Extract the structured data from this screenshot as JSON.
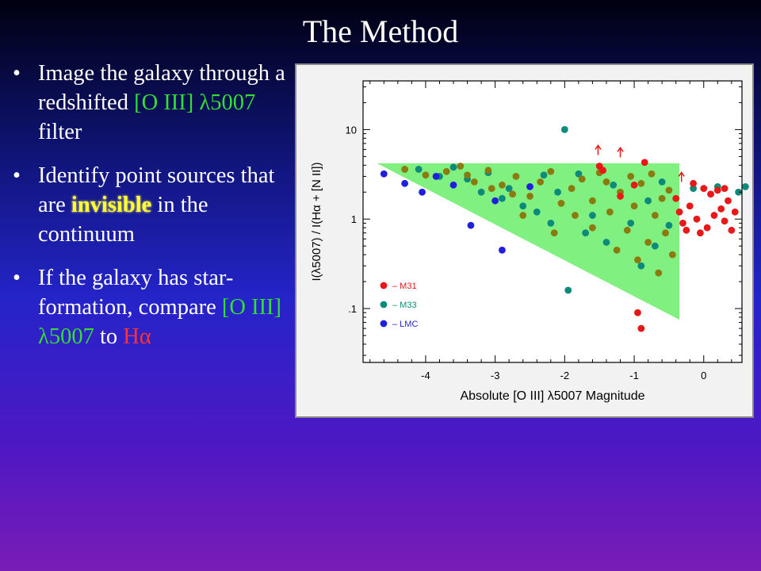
{
  "slide": {
    "title": "The Method",
    "bullets": [
      {
        "parts": [
          {
            "text": "Image the galaxy through a redshifted ",
            "style": "plain"
          },
          {
            "text": "[O III] λ5007",
            "style": "green"
          },
          {
            "text": " filter",
            "style": "plain"
          }
        ]
      },
      {
        "parts": [
          {
            "text": "Identify point sources that are ",
            "style": "plain"
          },
          {
            "text": "invisible",
            "style": "highlight"
          },
          {
            "text": " in the continuum",
            "style": "plain"
          }
        ]
      },
      {
        "parts": [
          {
            "text": "If the galaxy has star-formation, compare ",
            "style": "plain"
          },
          {
            "text": "[O III] λ5007",
            "style": "green"
          },
          {
            "text": " to ",
            "style": "plain"
          },
          {
            "text": "Hα",
            "style": "red"
          }
        ]
      }
    ]
  },
  "colors": {
    "green_text": "#33dd33",
    "red_text": "#ff3333",
    "highlight_text": "#ffff33",
    "region_fill": "#80f080",
    "m31": "#e81818",
    "m33": "#0e8a7a",
    "lmc": "#1f1fdd",
    "overlap": "#8a7a10"
  },
  "chart_data": {
    "type": "scatter",
    "xlabel": "Absolute [O III] λ5007 Magnitude",
    "ylabel": "I(λ5007) / I(Hα + [N II])",
    "xlim": [
      -4.9,
      0.55
    ],
    "ylim": [
      0.025,
      35
    ],
    "y_scale": "log",
    "x_ticks": [
      -4,
      -3,
      -2,
      -1,
      0
    ],
    "x_tick_labels": [
      "-4",
      "-3",
      "-2",
      "-1",
      "0"
    ],
    "y_ticks": [
      0.1,
      1,
      10
    ],
    "y_tick_labels": [
      ".1",
      "1",
      "10"
    ],
    "legend_position": "lower-left",
    "shaded_region": [
      [
        -4.7,
        4.2
      ],
      [
        -0.35,
        4.2
      ],
      [
        -0.35,
        0.075
      ]
    ],
    "series": [
      {
        "name": "M31",
        "color": "#e81818",
        "points": [
          [
            -0.35,
            1.2
          ],
          [
            -0.3,
            0.9
          ],
          [
            -0.25,
            0.75
          ],
          [
            -0.2,
            1.4
          ],
          [
            -0.1,
            1.0
          ],
          [
            -0.05,
            0.7
          ],
          [
            0.05,
            0.8
          ],
          [
            0.1,
            1.9
          ],
          [
            0.15,
            1.1
          ],
          [
            0.2,
            2.1
          ],
          [
            0.25,
            1.3
          ],
          [
            0.3,
            0.95
          ],
          [
            0.35,
            1.6
          ],
          [
            0.4,
            0.75
          ],
          [
            0.45,
            1.2
          ],
          [
            -0.4,
            1.7
          ],
          [
            -0.15,
            2.5
          ],
          [
            0.0,
            2.2
          ],
          [
            0.3,
            2.2
          ],
          [
            -0.95,
            0.09
          ],
          [
            -0.9,
            0.06
          ],
          [
            -1.0,
            2.4
          ],
          [
            -1.2,
            1.8
          ],
          [
            -1.5,
            3.9
          ],
          [
            -0.85,
            4.3
          ],
          [
            -1.45,
            3.5
          ]
        ]
      },
      {
        "name": "M33",
        "color": "#0e8a7a",
        "points": [
          [
            -2.0,
            10.0
          ],
          [
            -1.95,
            0.16
          ],
          [
            0.2,
            2.3
          ],
          [
            0.6,
            2.3
          ],
          [
            -0.15,
            2.2
          ],
          [
            0.5,
            2.0
          ],
          [
            -3.8,
            3.0
          ],
          [
            -3.4,
            2.8
          ],
          [
            -3.1,
            3.3
          ],
          [
            -2.8,
            2.2
          ],
          [
            -2.6,
            1.4
          ],
          [
            -2.3,
            3.1
          ],
          [
            -2.1,
            2.0
          ],
          [
            -1.8,
            3.2
          ],
          [
            -1.6,
            1.1
          ],
          [
            -1.3,
            2.4
          ],
          [
            -1.05,
            0.9
          ],
          [
            -0.8,
            1.6
          ],
          [
            -0.6,
            2.6
          ],
          [
            -0.5,
            0.85
          ],
          [
            -3.6,
            3.8
          ],
          [
            -2.9,
            1.7
          ],
          [
            -2.2,
            0.9
          ],
          [
            -1.4,
            0.55
          ],
          [
            -0.9,
            0.3
          ],
          [
            -0.7,
            0.5
          ],
          [
            -1.7,
            0.7
          ],
          [
            -2.4,
            1.2
          ],
          [
            -3.2,
            2.0
          ],
          [
            -4.1,
            3.6
          ]
        ]
      },
      {
        "name": "LMC",
        "color": "#1f1fdd",
        "points": [
          [
            -4.6,
            3.2
          ],
          [
            -4.3,
            2.5
          ],
          [
            -4.05,
            2.0
          ],
          [
            -3.85,
            3.0
          ],
          [
            -3.35,
            0.85
          ],
          [
            -2.9,
            0.45
          ],
          [
            -3.6,
            2.4
          ],
          [
            -2.5,
            2.3
          ],
          [
            -3.0,
            1.6
          ]
        ]
      },
      {
        "name": "",
        "color": "#8a7a10",
        "points": [
          [
            -4.3,
            3.6
          ],
          [
            -4.0,
            3.1
          ],
          [
            -3.7,
            3.4
          ],
          [
            -3.5,
            3.9
          ],
          [
            -3.3,
            2.6
          ],
          [
            -3.1,
            3.5
          ],
          [
            -2.9,
            2.4
          ],
          [
            -2.7,
            3.0
          ],
          [
            -2.5,
            1.8
          ],
          [
            -2.35,
            2.6
          ],
          [
            -2.2,
            3.4
          ],
          [
            -2.05,
            1.5
          ],
          [
            -1.9,
            2.2
          ],
          [
            -1.75,
            2.8
          ],
          [
            -1.6,
            1.6
          ],
          [
            -1.5,
            3.3
          ],
          [
            -1.35,
            1.2
          ],
          [
            -1.2,
            2.0
          ],
          [
            -1.1,
            0.75
          ],
          [
            -1.0,
            1.4
          ],
          [
            -0.9,
            2.5
          ],
          [
            -0.8,
            0.55
          ],
          [
            -0.7,
            1.1
          ],
          [
            -0.6,
            1.7
          ],
          [
            -0.5,
            2.1
          ],
          [
            -0.45,
            0.4
          ],
          [
            -1.25,
            0.45
          ],
          [
            -1.6,
            0.8
          ],
          [
            -1.85,
            1.1
          ],
          [
            -2.15,
            0.7
          ],
          [
            -2.6,
            1.1
          ],
          [
            -2.75,
            1.9
          ],
          [
            -3.05,
            2.2
          ],
          [
            -3.4,
            3.1
          ],
          [
            -0.65,
            0.25
          ],
          [
            -0.55,
            0.7
          ],
          [
            -0.95,
            0.35
          ],
          [
            -1.4,
            2.6
          ],
          [
            -1.05,
            3.0
          ],
          [
            -0.75,
            3.2
          ]
        ]
      }
    ],
    "annotations": [
      {
        "type": "arrow-up",
        "x": -1.52,
        "y": 5.2
      },
      {
        "type": "arrow-up",
        "x": -1.2,
        "y": 4.9
      },
      {
        "type": "arrow-up",
        "x": -0.32,
        "y": 2.6
      }
    ]
  }
}
